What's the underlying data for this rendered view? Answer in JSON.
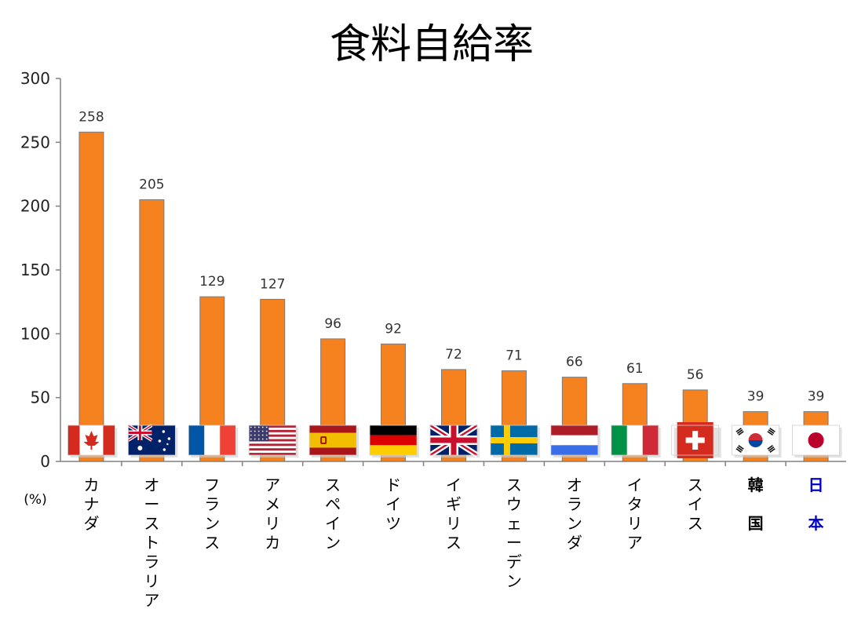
{
  "chart_data": {
    "type": "bar",
    "title": "食料自給率",
    "unit_label": "(%)",
    "ylim": [
      0,
      300
    ],
    "yticks": [
      0,
      50,
      100,
      150,
      200,
      250,
      300
    ],
    "grid": false,
    "bar_color": "#f6821f",
    "bar_edge_color": "#7a7a7a",
    "categories": [
      "カナダ",
      "オーストラリア",
      "フランス",
      "アメリカ",
      "スペイン",
      "ドイツ",
      "イギリス",
      "スウェーデン",
      "オランダ",
      "イタリア",
      "スイス",
      "韓国",
      "日本"
    ],
    "category_colors": [
      "#000000",
      "#000000",
      "#000000",
      "#000000",
      "#000000",
      "#000000",
      "#000000",
      "#000000",
      "#000000",
      "#000000",
      "#000000",
      "#000000",
      "#0000cc"
    ],
    "flags": [
      "canada-flag",
      "australia-flag",
      "france-flag",
      "usa-flag",
      "spain-flag",
      "germany-flag",
      "uk-flag",
      "sweden-flag",
      "netherlands-flag",
      "italy-flag",
      "switzerland-flag",
      "south-korea-flag",
      "japan-flag"
    ],
    "values": [
      258,
      205,
      129,
      127,
      96,
      92,
      72,
      71,
      66,
      61,
      56,
      39,
      39
    ],
    "value_labels": [
      "258",
      "205",
      "129",
      "127",
      "96",
      "92",
      "72",
      "71",
      "66",
      "61",
      "56",
      "39",
      "39"
    ],
    "category_label_lines": [
      [
        "カ",
        "ナ",
        "ダ"
      ],
      [
        "オ",
        "ー",
        "ス",
        "ト",
        "ラ",
        "リ",
        "ア"
      ],
      [
        "フ",
        "ラ",
        "ン",
        "ス"
      ],
      [
        "ア",
        "メ",
        "リ",
        "カ"
      ],
      [
        "ス",
        "ペ",
        "イ",
        "ン"
      ],
      [
        "ド",
        "イ",
        "ツ"
      ],
      [
        "イ",
        "ギ",
        "リ",
        "ス"
      ],
      [
        "ス",
        "ウ",
        "ェ",
        "ー",
        "デ",
        "ン"
      ],
      [
        "オ",
        "ラ",
        "ン",
        "ダ"
      ],
      [
        "イ",
        "タ",
        "リ",
        "ア"
      ],
      [
        "ス",
        "イ",
        "ス"
      ],
      [
        "韓",
        "",
        "国"
      ],
      [
        "日",
        "",
        "本"
      ]
    ]
  }
}
